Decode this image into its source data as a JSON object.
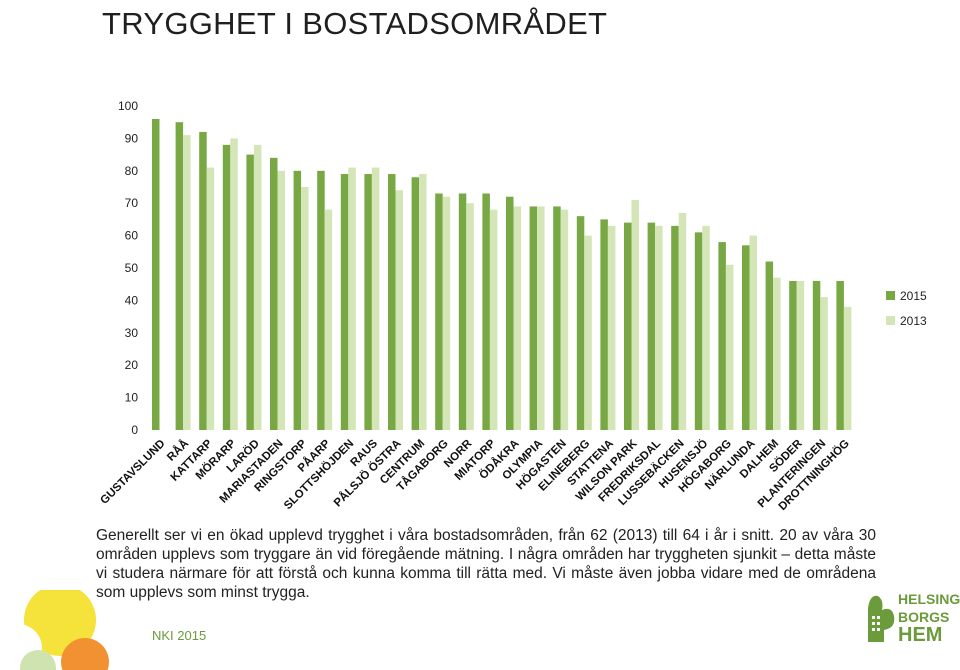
{
  "title": "TRYGGHET I BOSTADSOMRÅDET",
  "body_text": "Generellt ser vi en ökad upplevd trygghet i våra bostadsområden, från 62 (2013) till 64 i år i snitt. 20 av våra 30 områden upplevs som tryggare än vid föregående mätning. I några områden har tryggheten sjunkit – detta måste vi studera närmare för att förstå och kunna komma till rätta med. Vi måste även jobba vidare med de områdena som upplevs som minst trygga.",
  "footer": "NKI 2015",
  "logo": {
    "line1": "HELSING",
    "line2": "BORGS",
    "line3": "HEM"
  },
  "colors": {
    "series_2015": "#77a844",
    "series_2013": "#d4e5b8",
    "accent": "#6b9b3a"
  },
  "chart_data": {
    "type": "bar",
    "categories": [
      "GUSTAVSLUND",
      "RÅÅ",
      "KATTARP",
      "MÖRARP",
      "LARÖD",
      "MARIASTADEN",
      "RINGSTORP",
      "PÅARP",
      "SLOTTSHÖJDEN",
      "RAUS",
      "PÅLSJÖ ÖSTRA",
      "CENTRUM",
      "TÅGABORG",
      "NORR",
      "MIATORP",
      "ÖDÅKRA",
      "OLYMPIA",
      "HÖGASTEN",
      "ELINEBERG",
      "STATTENA",
      "WILSON PARK",
      "FREDRIKSDAL",
      "LUSSEBÄCKEN",
      "HUSENSJÖ",
      "HÖGABORG",
      "NÄRLUNDA",
      "DALHEM",
      "SÖDER",
      "PLANTERINGEN",
      "DROTTNINGHÖG"
    ],
    "series": [
      {
        "name": "2015",
        "values": [
          96,
          95,
          92,
          88,
          85,
          84,
          80,
          80,
          79,
          79,
          79,
          78,
          73,
          73,
          73,
          72,
          69,
          69,
          66,
          65,
          64,
          64,
          63,
          61,
          58,
          57,
          52,
          46,
          46,
          46
        ]
      },
      {
        "name": "2013",
        "values": [
          null,
          91,
          81,
          90,
          88,
          80,
          75,
          68,
          81,
          81,
          74,
          79,
          72,
          70,
          68,
          69,
          69,
          68,
          60,
          63,
          71,
          63,
          67,
          63,
          51,
          60,
          47,
          46,
          41,
          38
        ]
      }
    ],
    "yticks": [
      "0",
      "10",
      "20",
      "30",
      "40",
      "50",
      "60",
      "70",
      "80",
      "90",
      "100"
    ],
    "ylim": [
      0,
      100
    ],
    "legend_position": "right"
  }
}
